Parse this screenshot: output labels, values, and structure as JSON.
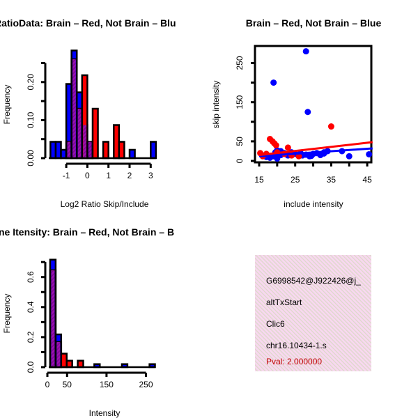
{
  "colors": {
    "blue": "#0000ff",
    "red": "#ff0000",
    "purple": "#9a10b0",
    "pink": "#f8d8f0",
    "pval": "#c00000"
  },
  "chart_data": [
    {
      "type": "bar",
      "title": "RatioData: Brain – Red, Not Brain – Blu",
      "xlabel": "Log2 Ratio Skip/Include",
      "ylabel": "Frequency",
      "xticks": [
        "-1",
        "0",
        "1",
        "2",
        "3"
      ],
      "xtick_values": [
        -1,
        0,
        1,
        2,
        3
      ],
      "yticks": [
        "0.00",
        "0.10",
        "0.20"
      ],
      "ytick_values": [
        0,
        0.1,
        0.2
      ],
      "ylim": [
        0,
        0.25
      ],
      "bin_width": 0.25,
      "series": [
        {
          "name": "Not Brain",
          "color": "blue",
          "bins": [
            [
              -1.75,
              0.043
            ],
            [
              -1.5,
              0.043
            ],
            [
              -1.25,
              0.022
            ],
            [
              -1,
              0.195
            ],
            [
              -0.75,
              0.283
            ],
            [
              -0.5,
              0.173
            ],
            [
              -0.25,
              0.087
            ],
            [
              0,
              0.043
            ],
            [
              2,
              0.022
            ],
            [
              3,
              0.043
            ]
          ]
        },
        {
          "name": "Brain",
          "color": "red",
          "bins": [
            [
              -1,
              0.043
            ],
            [
              -0.75,
              0.26
            ],
            [
              -0.5,
              0.13
            ],
            [
              -0.25,
              0.218
            ],
            [
              0,
              0.043
            ],
            [
              0.25,
              0.13
            ],
            [
              0.75,
              0.043
            ],
            [
              1.25,
              0.087
            ],
            [
              1.5,
              0.043
            ]
          ]
        }
      ]
    },
    {
      "type": "scatter",
      "title": "Brain – Red, Not Brain – Blue",
      "xlabel": "include intensity",
      "ylabel": "skip intensity",
      "xticks": [
        "15",
        "25",
        "35",
        "45"
      ],
      "xtick_values": [
        15,
        25,
        35,
        45
      ],
      "yticks": [
        "0",
        "50",
        "150",
        "250"
      ],
      "ytick_values": [
        0,
        50,
        150,
        250
      ],
      "xlim": [
        14,
        46.5
      ],
      "ylim": [
        -2,
        295
      ],
      "series": [
        {
          "name": "Not Brain",
          "color": "blue",
          "points": [
            [
              28,
              280
            ],
            [
              19,
              200
            ],
            [
              28.5,
              125
            ],
            [
              40,
              12
            ],
            [
              45.5,
              17
            ],
            [
              38,
              25
            ],
            [
              20,
              27
            ],
            [
              21,
              25
            ],
            [
              22,
              20
            ],
            [
              24,
              22
            ],
            [
              25,
              18
            ],
            [
              26,
              15
            ],
            [
              27,
              14
            ],
            [
              28,
              16
            ],
            [
              29,
              12
            ],
            [
              30,
              18
            ],
            [
              31,
              20
            ],
            [
              32,
              15
            ],
            [
              33,
              22
            ],
            [
              34,
              25
            ],
            [
              17,
              10
            ],
            [
              18,
              8
            ],
            [
              19,
              12
            ],
            [
              20,
              6
            ],
            [
              21,
              15
            ],
            [
              23,
              14
            ],
            [
              16,
              14
            ],
            [
              19.5,
              22
            ],
            [
              22.5,
              17
            ],
            [
              26.5,
              20
            ],
            [
              29.5,
              13
            ],
            [
              33,
              19
            ]
          ],
          "fit": [
            [
              15,
              12
            ],
            [
              46.5,
              32
            ]
          ]
        },
        {
          "name": "Brain",
          "color": "red",
          "points": [
            [
              35,
              88
            ],
            [
              18,
              56
            ],
            [
              18.7,
              50
            ],
            [
              19.2,
              45
            ],
            [
              19.7,
              40
            ],
            [
              23,
              34
            ],
            [
              15.3,
              20
            ],
            [
              16,
              12
            ],
            [
              17,
              18
            ],
            [
              24,
              14
            ],
            [
              26,
              12
            ],
            [
              20,
              22
            ],
            [
              22,
              18
            ]
          ],
          "fit": [
            [
              15,
              15
            ],
            [
              46.5,
              48
            ]
          ]
        }
      ]
    },
    {
      "type": "bar",
      "title": "ne Itensity: Brain – Red, Not Brain – B",
      "xlabel": "Intensity",
      "ylabel": "Frequency",
      "xticks": [
        "0",
        "50",
        "150",
        "250"
      ],
      "xtick_values": [
        0,
        50,
        150,
        250
      ],
      "yticks": [
        "0.0",
        "0.2",
        "0.4",
        "0.6"
      ],
      "ytick_values": [
        0,
        0.2,
        0.4,
        0.6
      ],
      "ylim": [
        0,
        0.7
      ],
      "bin_width": 14,
      "series": [
        {
          "name": "Not Brain",
          "color": "blue",
          "bins": [
            [
              7,
              0.716
            ],
            [
              21,
              0.218
            ],
            [
              119,
              0.02
            ],
            [
              189,
              0.02
            ],
            [
              259,
              0.02
            ]
          ]
        },
        {
          "name": "Brain",
          "color": "red",
          "bins": [
            [
              7,
              0.646
            ],
            [
              21,
              0.167
            ],
            [
              35,
              0.09
            ],
            [
              49,
              0.043
            ],
            [
              77,
              0.043
            ]
          ]
        }
      ]
    }
  ],
  "info_panel": {
    "lines": [
      "G6998542@J922426@j_",
      "altTxStart",
      "Clic6",
      "chr16.10434-1.s"
    ],
    "pval": "Pval: 2.000000"
  }
}
